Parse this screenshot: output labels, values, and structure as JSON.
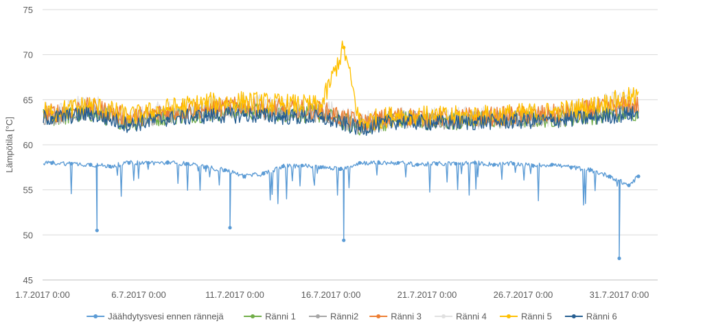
{
  "chart_data": {
    "type": "line",
    "title": "",
    "xlabel": "",
    "ylabel": "Lämpötila [°C]",
    "ylim": [
      45,
      75
    ],
    "yticks": [
      "45",
      "50",
      "55",
      "60",
      "65",
      "70",
      "75"
    ],
    "xlim": [
      "1.7.2017 0:00",
      "2.8.2017 0:00"
    ],
    "xticks": [
      "1.7.2017 0:00",
      "6.7.2017 0:00",
      "11.7.2017 0:00",
      "16.7.2017 0:00",
      "21.7.2017 0:00",
      "26.7.2017 0:00",
      "31.7.2017 0:00"
    ],
    "grid": "horizontal",
    "legend_position": "bottom",
    "series": [
      {
        "name": "Jäähdytysvesi ennen rännejä",
        "color": "#5b9bd5",
        "base": 58.0,
        "values": [
          [
            "1.7.2017 12:00",
            58.0
          ],
          [
            "2.7.2017 12:00",
            57.9
          ],
          [
            "3.7.2017 12:00",
            57.8
          ],
          [
            "3.7.2017 20:00",
            50.5
          ],
          [
            "4.7.2017 12:00",
            57.6
          ],
          [
            "5.7.2017 12:00",
            58.0
          ],
          [
            "6.7.2017 12:00",
            58.0
          ],
          [
            "7.7.2017 12:00",
            58.0
          ],
          [
            "8.7.2017 12:00",
            57.9
          ],
          [
            "9.7.2017 12:00",
            57.5
          ],
          [
            "10.7.2017 12:00",
            57.2
          ],
          [
            "10.7.2017 18:00",
            50.8
          ],
          [
            "11.7.2017 12:00",
            56.5
          ],
          [
            "12.7.2017 12:00",
            56.8
          ],
          [
            "13.7.2017 12:00",
            57.6
          ],
          [
            "14.7.2017 12:00",
            57.7
          ],
          [
            "15.7.2017 12:00",
            57.5
          ],
          [
            "16.7.2017 12:00",
            57.3
          ],
          [
            "16.7.2017 16:00",
            49.4
          ],
          [
            "17.7.2017 12:00",
            58.0
          ],
          [
            "18.7.2017 12:00",
            58.0
          ],
          [
            "19.7.2017 12:00",
            58.0
          ],
          [
            "20.7.2017 12:00",
            57.8
          ],
          [
            "21.7.2017 12:00",
            57.9
          ],
          [
            "22.7.2017 12:00",
            57.9
          ],
          [
            "23.7.2017 12:00",
            58.0
          ],
          [
            "24.7.2017 12:00",
            57.8
          ],
          [
            "25.7.2017 12:00",
            57.9
          ],
          [
            "26.7.2017 12:00",
            57.7
          ],
          [
            "27.7.2017 12:00",
            57.8
          ],
          [
            "28.7.2017 12:00",
            57.5
          ],
          [
            "29.7.2017 12:00",
            57.2
          ],
          [
            "30.7.2017 12:00",
            56.5
          ],
          [
            "31.7.2017 0:00",
            47.4
          ],
          [
            "31.7.2017 12:00",
            55.5
          ],
          [
            "1.8.2017 0:00",
            56.5
          ]
        ]
      },
      {
        "name": "Ränni 1",
        "color": "#70ad47",
        "values": [
          [
            "1.7.2017 12:00",
            63.0
          ],
          [
            "3.7.2017 12:00",
            63.5
          ],
          [
            "5.7.2017 12:00",
            62.5
          ],
          [
            "7.7.2017 12:00",
            63.2
          ],
          [
            "9.7.2017 12:00",
            63.5
          ],
          [
            "11.7.2017 12:00",
            63.8
          ],
          [
            "13.7.2017 12:00",
            63.5
          ],
          [
            "15.7.2017 12:00",
            63.4
          ],
          [
            "17.7.2017 12:00",
            62.0
          ],
          [
            "19.7.2017 12:00",
            62.8
          ],
          [
            "21.7.2017 12:00",
            62.6
          ],
          [
            "23.7.2017 12:00",
            62.7
          ],
          [
            "25.7.2017 12:00",
            62.8
          ],
          [
            "27.7.2017 12:00",
            62.9
          ],
          [
            "29.7.2017 12:00",
            63.2
          ],
          [
            "31.7.2017 12:00",
            63.6
          ]
        ]
      },
      {
        "name": "Ränni2",
        "color": "#a5a5a5",
        "values": [
          [
            "1.7.2017 12:00",
            63.2
          ],
          [
            "3.7.2017 12:00",
            63.7
          ],
          [
            "5.7.2017 12:00",
            62.7
          ],
          [
            "7.7.2017 12:00",
            63.3
          ],
          [
            "9.7.2017 12:00",
            63.6
          ],
          [
            "11.7.2017 12:00",
            63.9
          ],
          [
            "13.7.2017 12:00",
            63.6
          ],
          [
            "15.7.2017 12:00",
            63.5
          ],
          [
            "17.7.2017 12:00",
            62.1
          ],
          [
            "19.7.2017 12:00",
            62.9
          ],
          [
            "21.7.2017 12:00",
            62.7
          ],
          [
            "23.7.2017 12:00",
            62.8
          ],
          [
            "25.7.2017 12:00",
            62.9
          ],
          [
            "27.7.2017 12:00",
            63.0
          ],
          [
            "29.7.2017 12:00",
            63.3
          ],
          [
            "31.7.2017 12:00",
            63.7
          ]
        ]
      },
      {
        "name": "Ränni 3",
        "color": "#ed7d31",
        "values": [
          [
            "1.7.2017 12:00",
            63.5
          ],
          [
            "3.7.2017 12:00",
            64.2
          ],
          [
            "5.7.2017 12:00",
            63.0
          ],
          [
            "7.7.2017 12:00",
            63.6
          ],
          [
            "9.7.2017 12:00",
            64.0
          ],
          [
            "11.7.2017 12:00",
            64.3
          ],
          [
            "13.7.2017 12:00",
            64.0
          ],
          [
            "15.7.2017 12:00",
            63.8
          ],
          [
            "17.7.2017 12:00",
            62.4
          ],
          [
            "19.7.2017 12:00",
            63.2
          ],
          [
            "21.7.2017 12:00",
            63.0
          ],
          [
            "23.7.2017 12:00",
            63.1
          ],
          [
            "25.7.2017 12:00",
            63.2
          ],
          [
            "27.7.2017 12:00",
            63.4
          ],
          [
            "29.7.2017 12:00",
            63.9
          ],
          [
            "31.7.2017 12:00",
            64.4
          ]
        ]
      },
      {
        "name": "Ränni 4",
        "color": "#e0e0e0",
        "values": [
          [
            "1.7.2017 12:00",
            63.4
          ],
          [
            "3.7.2017 12:00",
            64.5
          ],
          [
            "5.7.2017 12:00",
            62.8
          ],
          [
            "7.7.2017 12:00",
            63.7
          ],
          [
            "9.7.2017 12:00",
            64.1
          ],
          [
            "11.7.2017 12:00",
            64.4
          ],
          [
            "13.7.2017 12:00",
            64.1
          ],
          [
            "15.7.2017 12:00",
            64.0
          ],
          [
            "17.7.2017 12:00",
            62.3
          ],
          [
            "19.7.2017 12:00",
            63.1
          ],
          [
            "21.7.2017 12:00",
            62.9
          ],
          [
            "23.7.2017 12:00",
            63.0
          ],
          [
            "25.7.2017 12:00",
            63.1
          ],
          [
            "27.7.2017 12:00",
            63.3
          ],
          [
            "29.7.2017 12:00",
            64.0
          ],
          [
            "31.7.2017 12:00",
            65.0
          ]
        ]
      },
      {
        "name": "Ränni 5",
        "color": "#ffc000",
        "values": [
          [
            "1.7.2017 12:00",
            63.6
          ],
          [
            "3.7.2017 12:00",
            64.4
          ],
          [
            "5.7.2017 12:00",
            63.1
          ],
          [
            "7.7.2017 12:00",
            64.0
          ],
          [
            "9.7.2017 12:00",
            64.6
          ],
          [
            "11.7.2017 12:00",
            64.8
          ],
          [
            "13.7.2017 12:00",
            64.5
          ],
          [
            "15.7.2017 12:00",
            64.3
          ],
          [
            "16.7.2017 16:00",
            70.8
          ],
          [
            "17.7.2017 12:00",
            62.5
          ],
          [
            "19.7.2017 12:00",
            63.3
          ],
          [
            "21.7.2017 12:00",
            63.1
          ],
          [
            "23.7.2017 12:00",
            63.2
          ],
          [
            "25.7.2017 12:00",
            63.4
          ],
          [
            "27.7.2017 12:00",
            63.6
          ],
          [
            "29.7.2017 12:00",
            64.2
          ],
          [
            "31.7.2017 12:00",
            65.2
          ]
        ]
      },
      {
        "name": "Ränni 6",
        "color": "#255e91",
        "values": [
          [
            "1.7.2017 12:00",
            63.0
          ],
          [
            "3.7.2017 12:00",
            63.4
          ],
          [
            "5.7.2017 12:00",
            62.2
          ],
          [
            "7.7.2017 12:00",
            62.9
          ],
          [
            "9.7.2017 12:00",
            63.2
          ],
          [
            "11.7.2017 12:00",
            63.3
          ],
          [
            "13.7.2017 12:00",
            63.1
          ],
          [
            "15.7.2017 12:00",
            63.0
          ],
          [
            "17.7.2017 12:00",
            61.8
          ],
          [
            "19.7.2017 12:00",
            62.6
          ],
          [
            "21.7.2017 12:00",
            62.4
          ],
          [
            "23.7.2017 12:00",
            62.5
          ],
          [
            "25.7.2017 12:00",
            62.6
          ],
          [
            "27.7.2017 12:00",
            62.7
          ],
          [
            "29.7.2017 12:00",
            63.0
          ],
          [
            "31.7.2017 12:00",
            63.4
          ]
        ]
      }
    ]
  }
}
